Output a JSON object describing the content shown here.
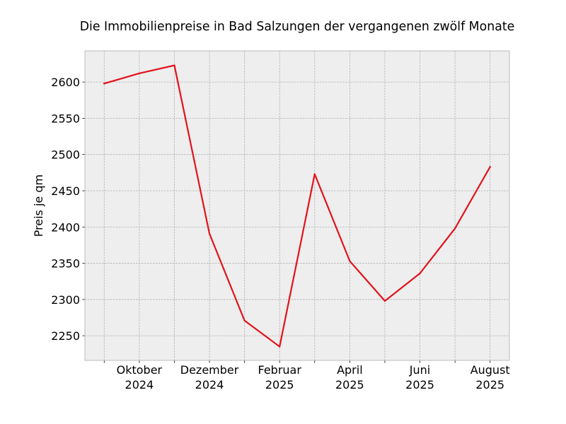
{
  "chart_data": {
    "type": "line",
    "title": "Die Immobilienpreise in Bad Salzungen der vergangenen zwölf Monate",
    "xlabel": "",
    "ylabel": "Preis je qm",
    "x": [
      "2024-09",
      "2024-10",
      "2024-11",
      "2024-12",
      "2025-01",
      "2025-02",
      "2025-03",
      "2025-04",
      "2025-05",
      "2025-06",
      "2025-07",
      "2025-08"
    ],
    "series": [
      {
        "values": [
          2598,
          2612,
          2623,
          2391,
          2271,
          2235,
          2473,
          2353,
          2298,
          2336,
          2398,
          2483
        ],
        "color": "#e2131b"
      }
    ],
    "x_tick_labels": [
      {
        "line1": "Oktober",
        "line2": "2024"
      },
      {
        "line1": "Dezember",
        "line2": "2024"
      },
      {
        "line1": "Februar",
        "line2": "2025"
      },
      {
        "line1": "April",
        "line2": "2025"
      },
      {
        "line1": "Juni",
        "line2": "2025"
      },
      {
        "line1": "August",
        "line2": "2025"
      }
    ],
    "y_ticks": [
      2250,
      2300,
      2350,
      2400,
      2450,
      2500,
      2550,
      2600
    ],
    "ylim": [
      2216,
      2643
    ],
    "grid": true,
    "background": "#eeeeee",
    "axes_edge_color": "#bcbcbc"
  }
}
